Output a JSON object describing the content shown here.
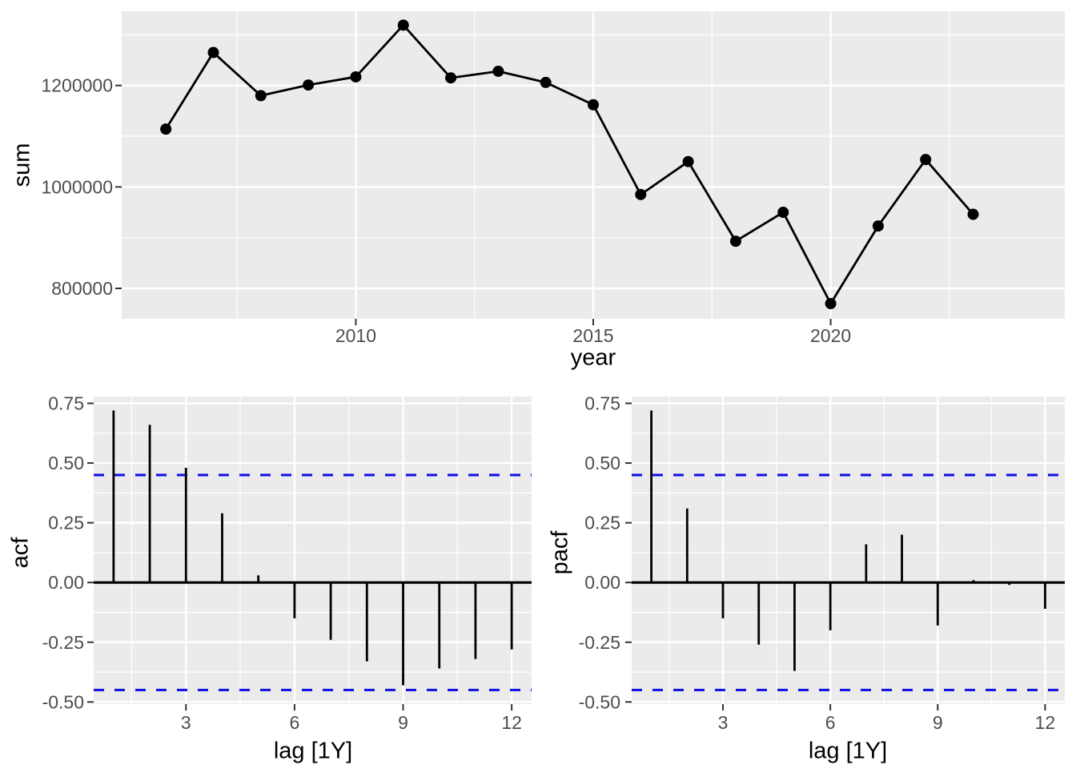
{
  "figure": {
    "colors": {
      "background": "#FFFFFF",
      "panel_bg": "#EBEBEB",
      "grid": "#FFFFFF",
      "tick_mark": "#333333",
      "tick_label": "#4D4D4D",
      "axis_title": "#000000",
      "series": "#000000",
      "conf_line": "#0F0FE6"
    }
  },
  "chart_data": [
    {
      "key": "timeseries",
      "type": "line",
      "title": "",
      "xlabel": "year",
      "ylabel": "sum",
      "x": [
        2006,
        2007,
        2008,
        2009,
        2010,
        2011,
        2012,
        2013,
        2014,
        2015,
        2016,
        2017,
        2018,
        2019,
        2020,
        2021,
        2022,
        2023
      ],
      "y": [
        1114000,
        1265000,
        1180000,
        1201000,
        1217000,
        1319000,
        1215000,
        1228000,
        1206000,
        1162000,
        985000,
        1050000,
        893000,
        950000,
        770000,
        923000,
        1054000,
        946000
      ],
      "xticks": [
        2010,
        2015,
        2020
      ],
      "xtick_labels": [
        "2010",
        "2015",
        "2020"
      ],
      "xminor": [
        2007.5,
        2012.5,
        2017.5,
        2022.5
      ],
      "yticks": [
        800000,
        1000000,
        1200000
      ],
      "ytick_labels": [
        "800000",
        "1000000",
        "1200000"
      ],
      "yminor": [
        900000,
        1100000,
        1300000
      ],
      "xlim": [
        2005.07,
        2024.93
      ],
      "ylim": [
        740000,
        1346400
      ],
      "grid": true,
      "legend": "none"
    },
    {
      "key": "acf",
      "type": "stem",
      "title": "",
      "xlabel": "lag [1Y]",
      "ylabel": "acf",
      "lags": [
        1,
        2,
        3,
        4,
        5,
        6,
        7,
        8,
        9,
        10,
        11,
        12
      ],
      "values": [
        0.72,
        0.66,
        0.48,
        0.29,
        0.03,
        -0.15,
        -0.24,
        -0.33,
        -0.43,
        -0.36,
        -0.32,
        -0.28
      ],
      "conf_upper": 0.45,
      "conf_lower": -0.45,
      "xticks": [
        3,
        6,
        9,
        12
      ],
      "xtick_labels": [
        "3",
        "6",
        "9",
        "12"
      ],
      "xminor": [
        1.5,
        4.5,
        7.5,
        10.5
      ],
      "yticks": [
        0.75,
        0.5,
        0.25,
        0.0,
        -0.25,
        -0.5
      ],
      "ytick_labels": [
        "0.75",
        "0.50",
        "0.25",
        "0.00",
        "-0.25",
        "-0.50"
      ],
      "yminor": [
        0.625,
        0.375,
        0.125,
        -0.125,
        -0.375
      ],
      "xlim": [
        0.45,
        12.55
      ],
      "ylim": [
        -0.509,
        0.7785
      ],
      "grid": true,
      "legend": "none"
    },
    {
      "key": "pacf",
      "type": "stem",
      "title": "",
      "xlabel": "lag [1Y]",
      "ylabel": "pacf",
      "lags": [
        1,
        2,
        3,
        4,
        5,
        6,
        7,
        8,
        9,
        10,
        11,
        12
      ],
      "values": [
        0.72,
        0.31,
        -0.15,
        -0.26,
        -0.37,
        -0.2,
        0.16,
        0.2,
        -0.18,
        0.01,
        -0.01,
        -0.11
      ],
      "conf_upper": 0.45,
      "conf_lower": -0.45,
      "xticks": [
        3,
        6,
        9,
        12
      ],
      "xtick_labels": [
        "3",
        "6",
        "9",
        "12"
      ],
      "xminor": [
        1.5,
        4.5,
        7.5,
        10.5
      ],
      "yticks": [
        0.75,
        0.5,
        0.25,
        0.0,
        -0.25,
        -0.5
      ],
      "ytick_labels": [
        "0.75",
        "0.50",
        "0.25",
        "0.00",
        "-0.25",
        "-0.50"
      ],
      "yminor": [
        0.625,
        0.375,
        0.125,
        -0.125,
        -0.375
      ],
      "xlim": [
        0.45,
        12.55
      ],
      "ylim": [
        -0.509,
        0.7785
      ],
      "grid": true,
      "legend": "none"
    }
  ]
}
